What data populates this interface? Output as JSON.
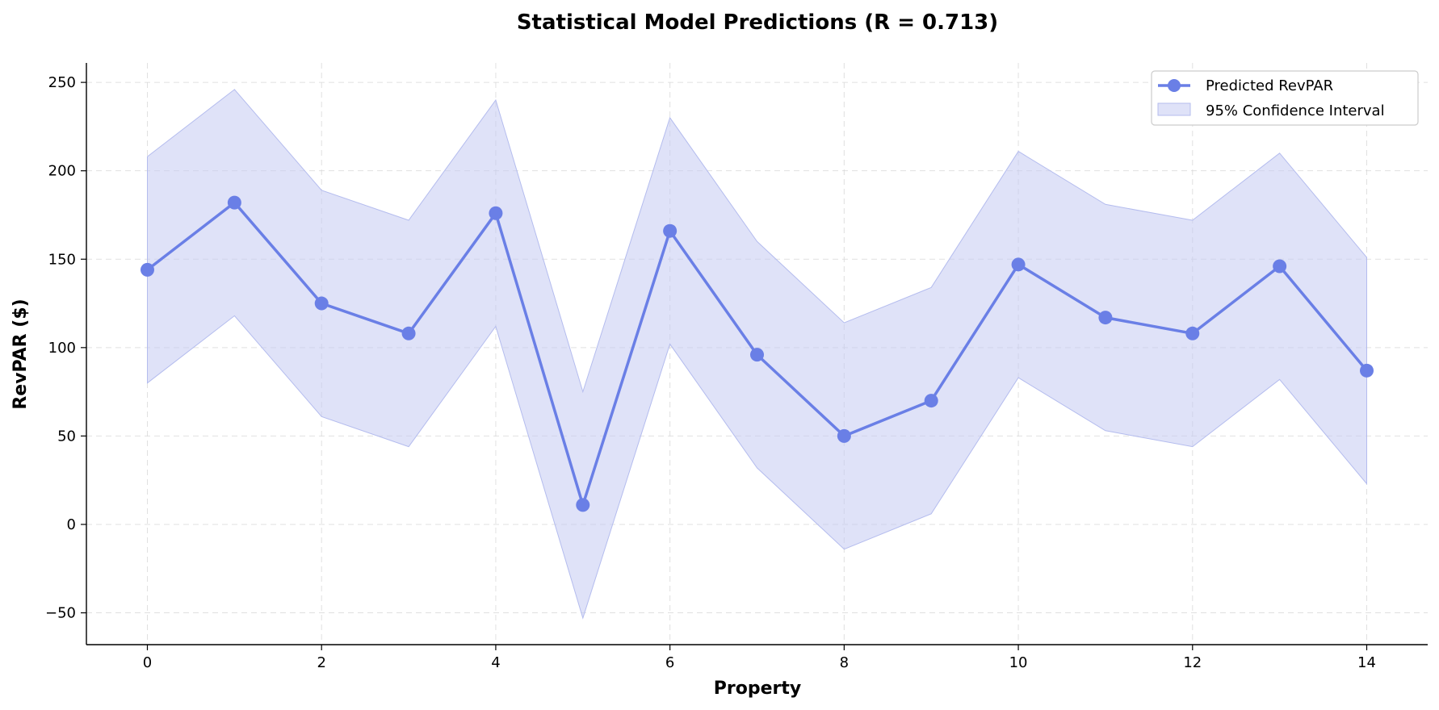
{
  "chart_data": {
    "type": "line",
    "title": "Statistical Model Predictions (R = 0.713)",
    "xlabel": "Property",
    "ylabel": "RevPAR ($)",
    "xlim": [
      -0.7,
      14.7
    ],
    "ylim": [
      -68,
      261
    ],
    "x_ticks": [
      0,
      2,
      4,
      6,
      8,
      10,
      12,
      14
    ],
    "x_tick_labels": [
      "0",
      "2",
      "4",
      "6",
      "8",
      "10",
      "12",
      "14"
    ],
    "y_ticks": [
      -50,
      0,
      50,
      100,
      150,
      200,
      250
    ],
    "y_tick_labels": [
      "−50",
      "0",
      "50",
      "100",
      "150",
      "200",
      "250"
    ],
    "grid": true,
    "legend_position": "top-right",
    "series": [
      {
        "name": "Predicted RevPAR",
        "kind": "line-markers",
        "color": "#6a7fe6",
        "x": [
          0,
          1,
          2,
          3,
          4,
          5,
          6,
          7,
          8,
          9,
          10,
          11,
          12,
          13,
          14
        ],
        "values": [
          144,
          182,
          125,
          108,
          176,
          11,
          166,
          96,
          50,
          70,
          147,
          117,
          108,
          146,
          87
        ]
      },
      {
        "name": "95% Confidence Interval",
        "kind": "band",
        "color": "#c5caf2",
        "x": [
          0,
          1,
          2,
          3,
          4,
          5,
          6,
          7,
          8,
          9,
          10,
          11,
          12,
          13,
          14
        ],
        "lower": [
          80,
          118,
          61,
          44,
          112,
          -53,
          102,
          32,
          -14,
          6,
          83,
          53,
          44,
          82,
          23
        ],
        "upper": [
          208,
          246,
          189,
          172,
          240,
          75,
          230,
          160,
          114,
          134,
          211,
          181,
          172,
          210,
          151
        ]
      }
    ]
  }
}
